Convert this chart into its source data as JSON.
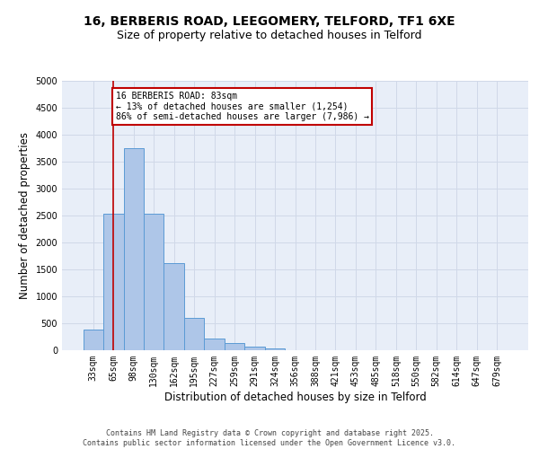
{
  "title_line1": "16, BERBERIS ROAD, LEEGOMERY, TELFORD, TF1 6XE",
  "title_line2": "Size of property relative to detached houses in Telford",
  "xlabel": "Distribution of detached houses by size in Telford",
  "ylabel": "Number of detached properties",
  "categories": [
    "33sqm",
    "65sqm",
    "98sqm",
    "130sqm",
    "162sqm",
    "195sqm",
    "227sqm",
    "259sqm",
    "291sqm",
    "324sqm",
    "356sqm",
    "388sqm",
    "421sqm",
    "453sqm",
    "485sqm",
    "518sqm",
    "550sqm",
    "582sqm",
    "614sqm",
    "647sqm",
    "679sqm"
  ],
  "values": [
    380,
    2530,
    3750,
    2530,
    1620,
    600,
    210,
    130,
    60,
    40,
    0,
    0,
    0,
    0,
    0,
    0,
    0,
    0,
    0,
    0,
    0
  ],
  "bar_color": "#aec6e8",
  "bar_edge_color": "#5b9bd5",
  "vline_x": 1,
  "vline_color": "#c00000",
  "annotation_text": "16 BERBERIS ROAD: 83sqm\n← 13% of detached houses are smaller (1,254)\n86% of semi-detached houses are larger (7,986) →",
  "annotation_box_color": "#ffffff",
  "annotation_box_edge": "#c00000",
  "ylim": [
    0,
    5000
  ],
  "yticks": [
    0,
    500,
    1000,
    1500,
    2000,
    2500,
    3000,
    3500,
    4000,
    4500,
    5000
  ],
  "grid_color": "#d0d8e8",
  "background_color": "#e8eef8",
  "footer_line1": "Contains HM Land Registry data © Crown copyright and database right 2025.",
  "footer_line2": "Contains public sector information licensed under the Open Government Licence v3.0.",
  "title_fontsize": 10,
  "subtitle_fontsize": 9,
  "tick_fontsize": 7,
  "label_fontsize": 8.5,
  "footer_fontsize": 6
}
